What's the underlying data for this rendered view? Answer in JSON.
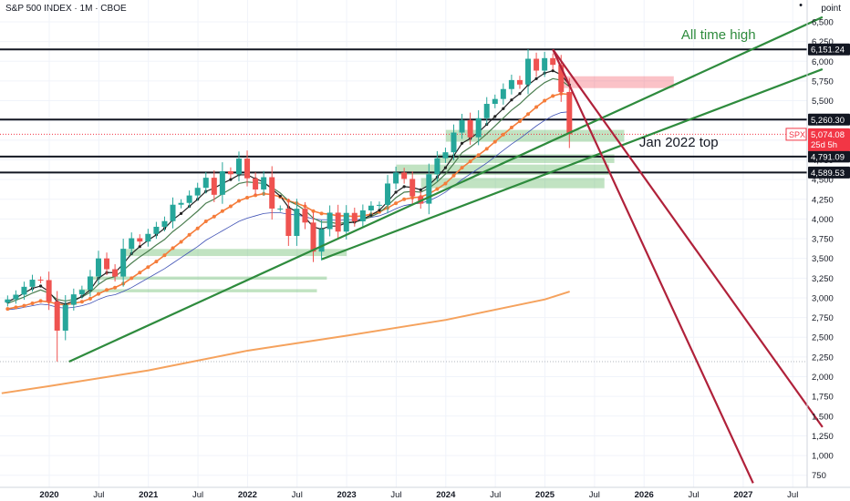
{
  "header": {
    "title": "S&P 500 INDEX · 1M · CBOE",
    "unit": "point"
  },
  "chart_data": {
    "type": "candlestick",
    "title": "S&P 500 INDEX · 1M · CBOE",
    "ylabel": "point",
    "ylim": [
      650,
      6650
    ],
    "y_ticks": [
      750,
      1000,
      1250,
      1500,
      1750,
      2000,
      2250,
      2500,
      2750,
      3000,
      3250,
      3500,
      3750,
      4000,
      4250,
      4500,
      4750,
      5000,
      5250,
      5500,
      5750,
      6000,
      6250,
      6500
    ],
    "x_ticks": [
      {
        "label": "2020",
        "year": true,
        "t": 2020.0
      },
      {
        "label": "Jul",
        "year": false,
        "t": 2020.5
      },
      {
        "label": "2021",
        "year": true,
        "t": 2021.0
      },
      {
        "label": "Jul",
        "year": false,
        "t": 2021.5
      },
      {
        "label": "2022",
        "year": true,
        "t": 2022.0
      },
      {
        "label": "Jul",
        "year": false,
        "t": 2022.5
      },
      {
        "label": "2023",
        "year": true,
        "t": 2023.0
      },
      {
        "label": "Jul",
        "year": false,
        "t": 2023.5
      },
      {
        "label": "2024",
        "year": true,
        "t": 2024.0
      },
      {
        "label": "Jul",
        "year": false,
        "t": 2024.5
      },
      {
        "label": "2025",
        "year": true,
        "t": 2025.0
      },
      {
        "label": "Jul",
        "year": false,
        "t": 2025.5
      },
      {
        "label": "2026",
        "year": true,
        "t": 2026.0
      },
      {
        "label": "Jul",
        "year": false,
        "t": 2026.5
      },
      {
        "label": "2027",
        "year": true,
        "t": 2027.0
      },
      {
        "label": "Jul",
        "year": false,
        "t": 2027.5
      }
    ],
    "xlim": [
      2019.52,
      2027.75
    ],
    "candles_start": 2019.58,
    "closes": [
      2980,
      3040,
      3140,
      3230,
      3225,
      2954,
      2584,
      2912,
      3044,
      3100,
      3271,
      3500,
      3363,
      3270,
      3622,
      3756,
      3714,
      3811,
      3901,
      3973,
      4181,
      4204,
      4298,
      4395,
      4523,
      4307,
      4605,
      4567,
      4766,
      4516,
      4374,
      4530,
      4132,
      4132,
      3785,
      4130,
      3955,
      3586,
      3872,
      4080,
      3840,
      4077,
      3970,
      4109,
      4169,
      4179,
      4450,
      4589,
      4508,
      4288,
      4194,
      4568,
      4770,
      4846,
      5096,
      5254,
      5036,
      5278,
      5460,
      5522,
      5648,
      5762,
      5705,
      6032,
      5882,
      6040,
      5955,
      5611,
      5074
    ],
    "ma_fast": [
      2950,
      3000,
      3060,
      3120,
      3150,
      3080,
      2950,
      2920,
      2960,
      3020,
      3100,
      3250,
      3320,
      3320,
      3430,
      3560,
      3650,
      3730,
      3800,
      3880,
      3990,
      4070,
      4160,
      4250,
      4350,
      4390,
      4450,
      4500,
      4560,
      4560,
      4510,
      4470,
      4380,
      4290,
      4150,
      4090,
      4020,
      3900,
      3870,
      3910,
      3910,
      3950,
      3960,
      4000,
      4050,
      4110,
      4220,
      4340,
      4410,
      4400,
      4370,
      4430,
      4530,
      4650,
      4800,
      4960,
      5020,
      5100,
      5200,
      5300,
      5400,
      5510,
      5590,
      5700,
      5780,
      5850,
      5880,
      5830,
      5700
    ],
    "ma_mid": [
      2930,
      2970,
      3010,
      3060,
      3100,
      3060,
      2980,
      2960,
      2980,
      3010,
      3070,
      3170,
      3240,
      3270,
      3350,
      3440,
      3520,
      3590,
      3670,
      3740,
      3840,
      3920,
      4010,
      4100,
      4200,
      4250,
      4320,
      4380,
      4450,
      4470,
      4460,
      4450,
      4400,
      4330,
      4230,
      4180,
      4110,
      4010,
      3960,
      3960,
      3940,
      3960,
      3960,
      3990,
      4030,
      4080,
      4170,
      4270,
      4340,
      4350,
      4340,
      4390,
      4470,
      4570,
      4700,
      4840,
      4910,
      4990,
      5080,
      5180,
      5280,
      5380,
      5460,
      5560,
      5650,
      5730,
      5780,
      5760,
      5680
    ],
    "ma_orange": [
      2860,
      2880,
      2900,
      2930,
      2960,
      2950,
      2920,
      2910,
      2930,
      2950,
      2990,
      3050,
      3100,
      3130,
      3180,
      3250,
      3320,
      3390,
      3460,
      3540,
      3630,
      3710,
      3800,
      3880,
      3970,
      4030,
      4100,
      4160,
      4230,
      4270,
      4300,
      4320,
      4310,
      4280,
      4230,
      4200,
      4160,
      4100,
      4070,
      4060,
      4040,
      4040,
      4030,
      4040,
      4060,
      4090,
      4140,
      4200,
      4250,
      4270,
      4280,
      4320,
      4380,
      4450,
      4550,
      4650,
      4730,
      4810,
      4890,
      4980,
      5070,
      5160,
      5240,
      5330,
      5420,
      5500,
      5560,
      5590,
      5580
    ],
    "ma_blue": [
      2850,
      2860,
      2880,
      2900,
      2920,
      2910,
      2880,
      2870,
      2880,
      2900,
      2930,
      2980,
      3020,
      3040,
      3080,
      3130,
      3190,
      3250,
      3310,
      3370,
      3440,
      3510,
      3580,
      3650,
      3730,
      3790,
      3850,
      3910,
      3970,
      4010,
      4040,
      4070,
      4080,
      4080,
      4060,
      4050,
      4030,
      4000,
      3990,
      3990,
      3980,
      3990,
      3990,
      4000,
      4020,
      4040,
      4080,
      4130,
      4170,
      4190,
      4200,
      4230,
      4280,
      4340,
      4420,
      4500,
      4570,
      4640,
      4710,
      4790,
      4870,
      4950,
      5020,
      5100,
      5180,
      5250,
      5310,
      5350,
      5360
    ],
    "ma_long": {
      "t": [
        2019.52,
        2020.0,
        2021.0,
        2022.0,
        2023.0,
        2024.0,
        2025.0,
        2025.25
      ],
      "y": [
        1790,
        1880,
        2080,
        2330,
        2520,
        2720,
        2980,
        3080
      ]
    },
    "horizontal_levels": [
      {
        "value": 6151.24,
        "label": "6,151.24"
      },
      {
        "value": 5260.3,
        "label": "5,260.30"
      },
      {
        "value": 4791.09,
        "label": "4,791.09"
      },
      {
        "value": 4589.53,
        "label": "4,589.53"
      }
    ],
    "last_price": {
      "symbol": "SPX",
      "value": "5,074.08",
      "countdown": "25d 5h",
      "y": 5074.08
    },
    "dotted_levels": [
      5074.08,
      2191
    ],
    "trendlines": [
      {
        "color": "green",
        "from": [
          2020.2,
          2191
        ],
        "to": [
          2027.8,
          6560
        ]
      },
      {
        "color": "green",
        "from": [
          2022.75,
          3490
        ],
        "to": [
          2027.8,
          5900
        ]
      },
      {
        "color": "maroon",
        "from": [
          2025.08,
          6150
        ],
        "to": [
          2027.1,
          650
        ]
      },
      {
        "color": "maroon",
        "from": [
          2025.08,
          6150
        ],
        "to": [
          2027.8,
          1360
        ]
      }
    ],
    "zones": [
      {
        "color": "red",
        "t0": 2025.17,
        "t1": 2026.3,
        "y0": 5660,
        "y1": 5810
      },
      {
        "color": "green",
        "t0": 2024.0,
        "t1": 2025.8,
        "y0": 4980,
        "y1": 5130
      },
      {
        "color": "green",
        "t0": 2023.92,
        "t1": 2025.7,
        "y0": 4710,
        "y1": 4820
      },
      {
        "color": "green",
        "t0": 2023.5,
        "t1": 2025.65,
        "y0": 4560,
        "y1": 4690
      },
      {
        "color": "green",
        "t0": 2023.75,
        "t1": 2025.6,
        "y0": 4390,
        "y1": 4520
      },
      {
        "color": "green",
        "t0": 2020.75,
        "t1": 2023.0,
        "y0": 3530,
        "y1": 3620
      },
      {
        "color": "green",
        "t0": 2020.4,
        "t1": 2022.8,
        "y0": 3230,
        "y1": 3270
      },
      {
        "color": "green",
        "t0": 2020.3,
        "t1": 2022.7,
        "y0": 3070,
        "y1": 3110
      }
    ],
    "annotations": [
      {
        "text": "All time high",
        "t": 2026.75,
        "y": 6280,
        "color": "green"
      },
      {
        "text": "Jan 2022 top",
        "t": 2026.35,
        "y": 4920,
        "color": "black"
      }
    ]
  }
}
